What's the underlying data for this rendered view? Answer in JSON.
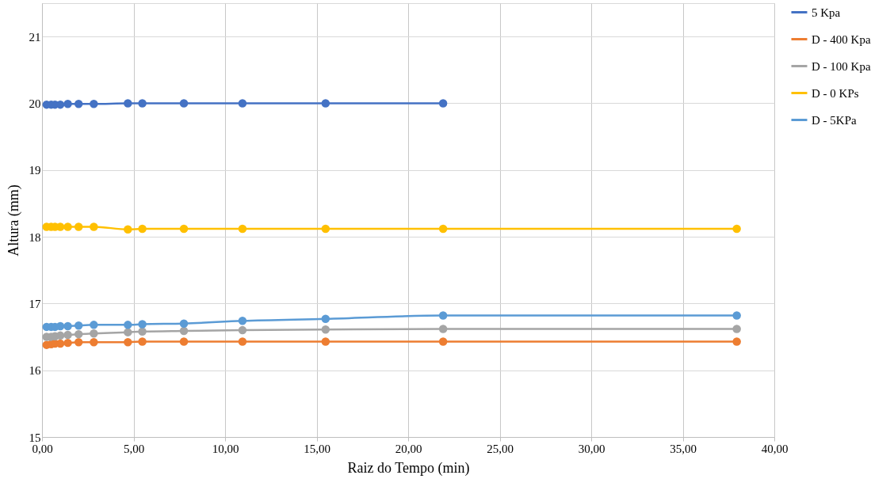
{
  "chart_data": {
    "type": "line",
    "xlabel": "Raiz do Tempo (min)",
    "ylabel": "Altura (mm)",
    "xlim": [
      0,
      40
    ],
    "xticks": [
      {
        "value": 0,
        "label": "0,00"
      },
      {
        "value": 5,
        "label": "5,00"
      },
      {
        "value": 10,
        "label": "10,00"
      },
      {
        "value": 15,
        "label": "15,00"
      },
      {
        "value": 20,
        "label": "20,00"
      },
      {
        "value": 25,
        "label": "25,00"
      },
      {
        "value": 30,
        "label": "30,00"
      },
      {
        "value": 35,
        "label": "35,00"
      },
      {
        "value": 40,
        "label": "40,00"
      }
    ],
    "ylim": [
      15,
      21.5
    ],
    "yticks": [
      15,
      16,
      17,
      18,
      19,
      20,
      21
    ],
    "grid": true,
    "legend": "right",
    "marker": "circle",
    "line_style": "solid",
    "series": [
      {
        "name": "5 Kpa",
        "color": "#4472c4",
        "x": [
          0.25,
          0.5,
          0.71,
          1,
          1.41,
          2,
          2.83,
          4.69,
          5.48,
          7.75,
          10.95,
          15.49,
          21.91
        ],
        "values": [
          19.98,
          19.98,
          19.98,
          19.98,
          19.99,
          19.99,
          19.99,
          20.0,
          20.0,
          20.0,
          20.0,
          20.0,
          20.0
        ]
      },
      {
        "name": "D - 400 Kpa",
        "color": "#ed7d31",
        "x": [
          0.25,
          0.5,
          0.71,
          1,
          1.41,
          2,
          2.83,
          4.69,
          5.48,
          7.75,
          10.95,
          15.49,
          21.91,
          37.95
        ],
        "values": [
          16.38,
          16.39,
          16.4,
          16.4,
          16.41,
          16.42,
          16.42,
          16.42,
          16.43,
          16.43,
          16.43,
          16.43,
          16.43,
          16.43
        ]
      },
      {
        "name": "D - 100 Kpa",
        "color": "#a5a5a5",
        "x": [
          0.25,
          0.5,
          0.71,
          1,
          1.41,
          2,
          2.83,
          4.69,
          5.48,
          7.75,
          10.95,
          15.49,
          21.91,
          37.95
        ],
        "values": [
          16.5,
          16.5,
          16.51,
          16.52,
          16.53,
          16.54,
          16.55,
          16.57,
          16.58,
          16.59,
          16.6,
          16.61,
          16.62,
          16.62
        ]
      },
      {
        "name": "D - 0 KPs",
        "color": "#ffc000",
        "x": [
          0.25,
          0.5,
          0.71,
          1,
          1.41,
          2,
          2.83,
          4.69,
          5.48,
          7.75,
          10.95,
          15.49,
          21.91,
          37.95
        ],
        "values": [
          18.15,
          18.15,
          18.15,
          18.15,
          18.15,
          18.15,
          18.15,
          18.11,
          18.12,
          18.12,
          18.12,
          18.12,
          18.12,
          18.12
        ]
      },
      {
        "name": "D - 5KPa",
        "color": "#5b9bd5",
        "x": [
          0.25,
          0.5,
          0.71,
          1,
          1.41,
          2,
          2.83,
          4.69,
          5.48,
          7.75,
          10.95,
          15.49,
          21.91,
          37.95
        ],
        "values": [
          16.65,
          16.65,
          16.65,
          16.66,
          16.66,
          16.67,
          16.68,
          16.68,
          16.69,
          16.7,
          16.74,
          16.77,
          16.82,
          16.82
        ]
      }
    ]
  }
}
